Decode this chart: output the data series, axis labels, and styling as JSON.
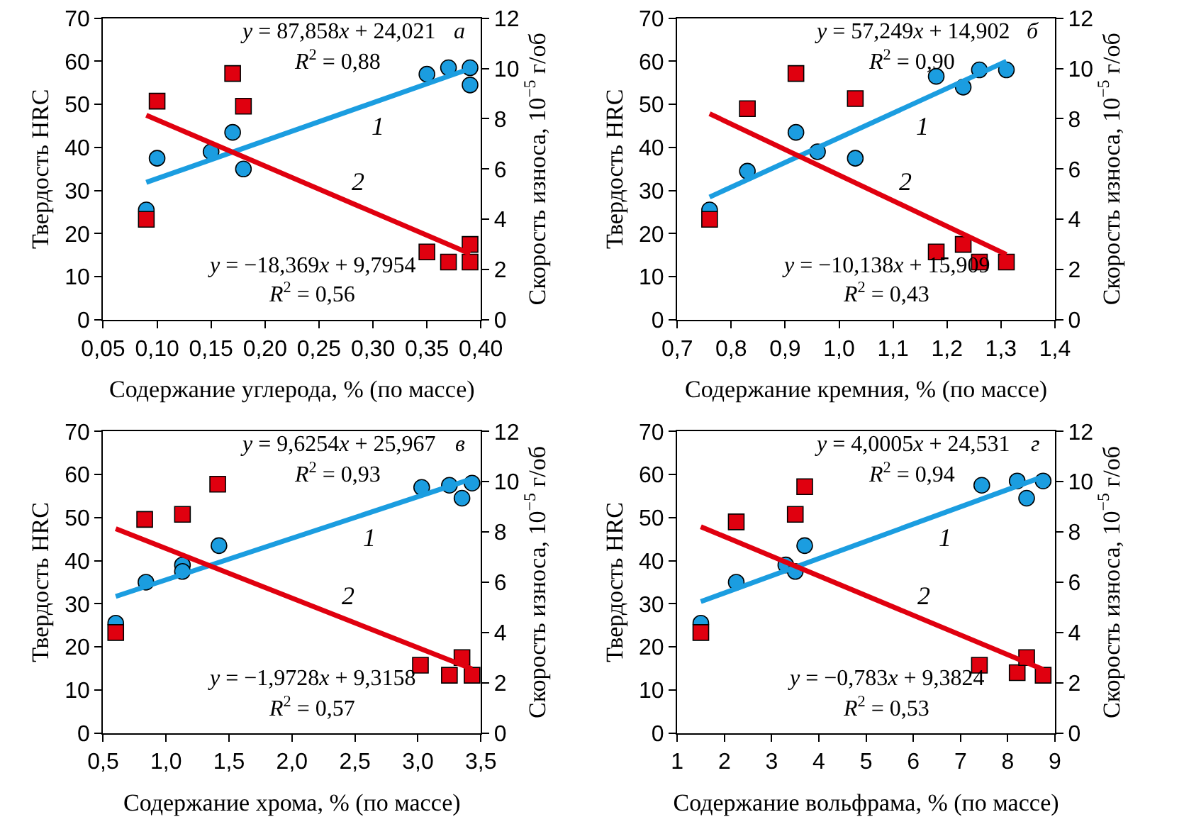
{
  "chart_data": [
    {
      "type": "scatter",
      "xlabel": "Содержание углерода, % (по массе)",
      "ylabel": "Твердость HRC",
      "y2label": "Скорость износа, 10$^{−5}$ г/об",
      "annotations": [
        "y = 87,858x + 24,021",
        "R$^{2}$ = 0,88",
        "y = −18,369x + 9,7954",
        "R$^{2}$ = 0,56",
        "а"
      ],
      "xlim": [
        0.05,
        0.4
      ],
      "xticks": [
        {
          "value": 0.05,
          "label": "0,05"
        },
        {
          "value": 0.1,
          "label": "0,10"
        },
        {
          "value": 0.15,
          "label": "0,15"
        },
        {
          "value": 0.2,
          "label": "0,20"
        },
        {
          "value": 0.25,
          "label": "0,25"
        },
        {
          "value": 0.3,
          "label": "0,30"
        },
        {
          "value": 0.35,
          "label": "0,35"
        },
        {
          "value": 0.4,
          "label": "0,40"
        }
      ],
      "ylim": [
        0,
        70
      ],
      "yticks": [
        0,
        10,
        20,
        30,
        40,
        50,
        60,
        70
      ],
      "y2lim": [
        0,
        12
      ],
      "y2ticks": [
        0,
        2,
        4,
        6,
        8,
        10,
        12
      ],
      "grid": false,
      "legend": false,
      "series": [
        {
          "marker": "circle",
          "color": "#1b9de0",
          "x": [
            0.09,
            0.1,
            0.15,
            0.17,
            0.18,
            0.35,
            0.37,
            0.39,
            0.39
          ],
          "values": [
            25.5,
            37.5,
            39,
            43.5,
            35,
            57,
            58.5,
            58.5,
            54.5
          ]
        },
        {
          "marker": "square",
          "color": "#e0000f",
          "axis": "y2",
          "x": [
            0.09,
            0.1,
            0.17,
            0.18,
            0.35,
            0.37,
            0.39,
            0.39
          ],
          "values": [
            4.0,
            8.7,
            9.8,
            8.5,
            2.7,
            2.3,
            3.0,
            2.3
          ]
        },
        {
          "type": "line",
          "name": "1",
          "color": "#1b9de0",
          "x": [
            0.09,
            0.39
          ],
          "values": [
            31.9,
            58.3
          ]
        },
        {
          "type": "line",
          "name": "2",
          "color": "#e0000f",
          "axis": "y2",
          "x": [
            0.09,
            0.39
          ],
          "values": [
            8.14,
            2.63
          ]
        }
      ]
    },
    {
      "type": "scatter",
      "xlabel": "Содержание кремния, % (по массе)",
      "ylabel": "Твердость HRC",
      "y2label": "Скорость износа, 10$^{−5}$ г/об",
      "annotations": [
        "y = 57,249x + 14,902",
        "R$^{2}$ = 0,90",
        "y = −10,138x + 15,909",
        "R$^{2}$ = 0,43",
        "б"
      ],
      "xlim": [
        0.7,
        1.4
      ],
      "xticks": [
        {
          "value": 0.7,
          "label": "0,7"
        },
        {
          "value": 0.8,
          "label": "0,8"
        },
        {
          "value": 0.9,
          "label": "0,9"
        },
        {
          "value": 1.0,
          "label": "1,0"
        },
        {
          "value": 1.1,
          "label": "1,1"
        },
        {
          "value": 1.2,
          "label": "1,2"
        },
        {
          "value": 1.3,
          "label": "1,3"
        },
        {
          "value": 1.4,
          "label": "1,4"
        }
      ],
      "ylim": [
        0,
        70
      ],
      "yticks": [
        0,
        10,
        20,
        30,
        40,
        50,
        60,
        70
      ],
      "y2lim": [
        0,
        12
      ],
      "y2ticks": [
        0,
        2,
        4,
        6,
        8,
        10,
        12
      ],
      "grid": false,
      "legend": false,
      "series": [
        {
          "marker": "circle",
          "color": "#1b9de0",
          "x": [
            0.76,
            0.83,
            0.92,
            0.96,
            1.03,
            1.18,
            1.23,
            1.26,
            1.31
          ],
          "values": [
            25.5,
            34.5,
            43.5,
            39,
            37.5,
            56.5,
            54,
            58,
            58
          ]
        },
        {
          "marker": "square",
          "color": "#e0000f",
          "axis": "y2",
          "x": [
            0.76,
            0.83,
            0.92,
            1.03,
            1.18,
            1.23,
            1.26,
            1.31
          ],
          "values": [
            4.0,
            8.4,
            9.8,
            8.8,
            2.7,
            3.0,
            2.3,
            2.3
          ]
        },
        {
          "type": "line",
          "name": "1",
          "color": "#1b9de0",
          "x": [
            0.76,
            1.31
          ],
          "values": [
            28.5,
            60
          ]
        },
        {
          "type": "line",
          "name": "2",
          "color": "#e0000f",
          "axis": "y2",
          "x": [
            0.76,
            1.31
          ],
          "values": [
            8.2,
            2.6
          ]
        }
      ]
    },
    {
      "type": "scatter",
      "xlabel": "Содержание хрома, % (по массе)",
      "ylabel": "Твердость HRC",
      "y2label": "Скорость износа, 10$^{−5}$ г/об",
      "annotations": [
        "y = 9,6254x + 25,967",
        "R$^{2}$ = 0,93",
        "y = −1,9728x + 9,3158",
        "R$^{2}$ = 0,57",
        "в"
      ],
      "xlim": [
        0.5,
        3.5
      ],
      "xticks": [
        {
          "value": 0.5,
          "label": "0,5"
        },
        {
          "value": 1.0,
          "label": "1,0"
        },
        {
          "value": 1.5,
          "label": "1,5"
        },
        {
          "value": 2.0,
          "label": "2,0"
        },
        {
          "value": 2.5,
          "label": "2,5"
        },
        {
          "value": 3.0,
          "label": "3,0"
        },
        {
          "value": 3.5,
          "label": "3,5"
        }
      ],
      "ylim": [
        0,
        70
      ],
      "yticks": [
        0,
        10,
        20,
        30,
        40,
        50,
        60,
        70
      ],
      "y2lim": [
        0,
        12
      ],
      "y2ticks": [
        0,
        2,
        4,
        6,
        8,
        10,
        12
      ],
      "grid": false,
      "legend": false,
      "series": [
        {
          "marker": "circle",
          "color": "#1b9de0",
          "x": [
            0.6,
            0.84,
            1.13,
            1.13,
            1.42,
            3.03,
            3.25,
            3.35,
            3.43
          ],
          "values": [
            25.5,
            35,
            39,
            37.5,
            43.5,
            57,
            57.5,
            54.5,
            58
          ]
        },
        {
          "marker": "square",
          "color": "#e0000f",
          "axis": "y2",
          "x": [
            0.6,
            0.83,
            1.13,
            1.41,
            3.02,
            3.25,
            3.35,
            3.43
          ],
          "values": [
            4.0,
            8.5,
            8.7,
            9.9,
            2.7,
            2.3,
            3.0,
            2.3
          ]
        },
        {
          "type": "line",
          "name": "1",
          "color": "#1b9de0",
          "x": [
            0.6,
            3.43
          ],
          "values": [
            31.7,
            59.0
          ]
        },
        {
          "type": "line",
          "name": "2",
          "color": "#e0000f",
          "axis": "y2",
          "x": [
            0.6,
            3.43
          ],
          "values": [
            8.13,
            2.55
          ]
        }
      ]
    },
    {
      "type": "scatter",
      "xlabel": "Содержание вольфрама, % (по массе)",
      "ylabel": "Твердость HRC",
      "y2label": "Скорость износа, 10$^{−5}$ г/об",
      "annotations": [
        "y = 4,0005x + 24,531",
        "R$^{2}$ = 0,94",
        "y = −0,783x + 9,3824",
        "R$^{2}$ = 0,53",
        "г"
      ],
      "xlim": [
        1,
        9
      ],
      "xticks": [
        1,
        2,
        3,
        4,
        5,
        6,
        7,
        8,
        9
      ],
      "ylim": [
        0,
        70
      ],
      "yticks": [
        0,
        10,
        20,
        30,
        40,
        50,
        60,
        70
      ],
      "y2lim": [
        0,
        12
      ],
      "y2ticks": [
        0,
        2,
        4,
        6,
        8,
        10,
        12
      ],
      "grid": false,
      "legend": false,
      "series": [
        {
          "marker": "circle",
          "color": "#1b9de0",
          "x": [
            1.5,
            2.25,
            3.3,
            3.5,
            3.7,
            7.45,
            8.2,
            8.4,
            8.75
          ],
          "values": [
            25.5,
            35,
            39,
            37.5,
            43.5,
            57.5,
            58.5,
            54.5,
            58.5
          ]
        },
        {
          "marker": "square",
          "color": "#e0000f",
          "axis": "y2",
          "x": [
            1.5,
            2.25,
            3.5,
            3.7,
            7.4,
            8.2,
            8.4,
            8.75
          ],
          "values": [
            4.0,
            8.4,
            8.7,
            9.8,
            2.7,
            2.4,
            3.0,
            2.3
          ]
        },
        {
          "type": "line",
          "name": "1",
          "color": "#1b9de0",
          "x": [
            1.5,
            8.75
          ],
          "values": [
            30.5,
            59.5
          ]
        },
        {
          "type": "line",
          "name": "2",
          "color": "#e0000f",
          "axis": "y2",
          "x": [
            1.5,
            8.75
          ],
          "values": [
            8.21,
            2.53
          ]
        }
      ]
    }
  ]
}
